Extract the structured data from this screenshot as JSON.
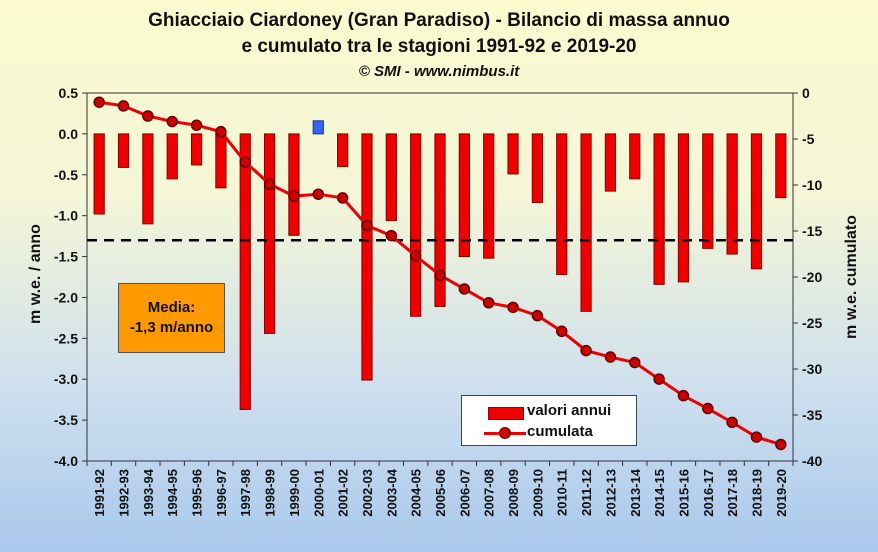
{
  "title": {
    "line1": "Ghiacciaio Ciardoney (Gran Paradiso) - Bilancio di massa annuo",
    "line2": "e cumulato tra le stagioni 1991-92 e 2019-20",
    "line3": "© SMI - www.nimbus.it"
  },
  "annotation": {
    "line1": "Media:",
    "line2": "-1,3 m/anno"
  },
  "legend": {
    "bar_label": "valori annui",
    "line_label": "cumulata"
  },
  "colors": {
    "bar_negative": "#ee0000",
    "bar_positive": "#3366ff",
    "line": "#ee0000",
    "marker": "#cc0000",
    "mean_line": "#000000",
    "annotation_box": "#ff9900"
  },
  "chart_data": {
    "type": "bar",
    "xlabel": "",
    "ylabel": "m w.e. / anno",
    "y2label": "m w.e. cumulato",
    "ylim": [
      -4.0,
      0.5
    ],
    "y2lim": [
      -40,
      0
    ],
    "yticks": [
      "0.5",
      "0.0",
      "-0.5",
      "-1.0",
      "-1.5",
      "-2.0",
      "-2.5",
      "-3.0",
      "-3.5",
      "-4.0"
    ],
    "y2ticks": [
      "0",
      "-5",
      "-10",
      "-15",
      "-20",
      "-25",
      "-30",
      "-35",
      "-40"
    ],
    "mean": -1.3,
    "categories": [
      "1991-92",
      "1992-93",
      "1993-94",
      "1994-95",
      "1995-96",
      "1996-97",
      "1997-98",
      "1998-99",
      "1999-00",
      "2000-01",
      "2001-02",
      "2002-03",
      "2003-04",
      "2004-05",
      "2005-06",
      "2006-07",
      "2007-08",
      "2008-09",
      "2009-10",
      "2010-11",
      "2011-12",
      "2012-13",
      "2013-14",
      "2014-15",
      "2015-16",
      "2016-17",
      "2017-18",
      "2018-19",
      "2019-20"
    ],
    "series": [
      {
        "name": "valori annui",
        "type": "bar",
        "axis": "left",
        "values": [
          -0.98,
          -0.41,
          -1.1,
          -0.55,
          -0.38,
          -0.66,
          -3.37,
          -2.44,
          -1.24,
          0.16,
          -0.4,
          -3.01,
          -1.06,
          -2.23,
          -2.11,
          -1.5,
          -1.52,
          -0.49,
          -0.84,
          -1.72,
          -2.17,
          -0.7,
          -0.55,
          -1.84,
          -1.81,
          -1.4,
          -1.47,
          -1.65,
          -0.78
        ]
      },
      {
        "name": "cumulata",
        "type": "line",
        "axis": "right",
        "values": [
          -1.0,
          -1.4,
          -2.5,
          -3.1,
          -3.5,
          -4.2,
          -7.5,
          -9.9,
          -11.2,
          -11.0,
          -11.4,
          -14.4,
          -15.5,
          -17.7,
          -19.8,
          -21.3,
          -22.8,
          -23.3,
          -24.2,
          -25.9,
          -28.0,
          -28.7,
          -29.3,
          -31.1,
          -32.9,
          -34.3,
          -35.8,
          -37.4,
          -38.2
        ]
      }
    ]
  }
}
